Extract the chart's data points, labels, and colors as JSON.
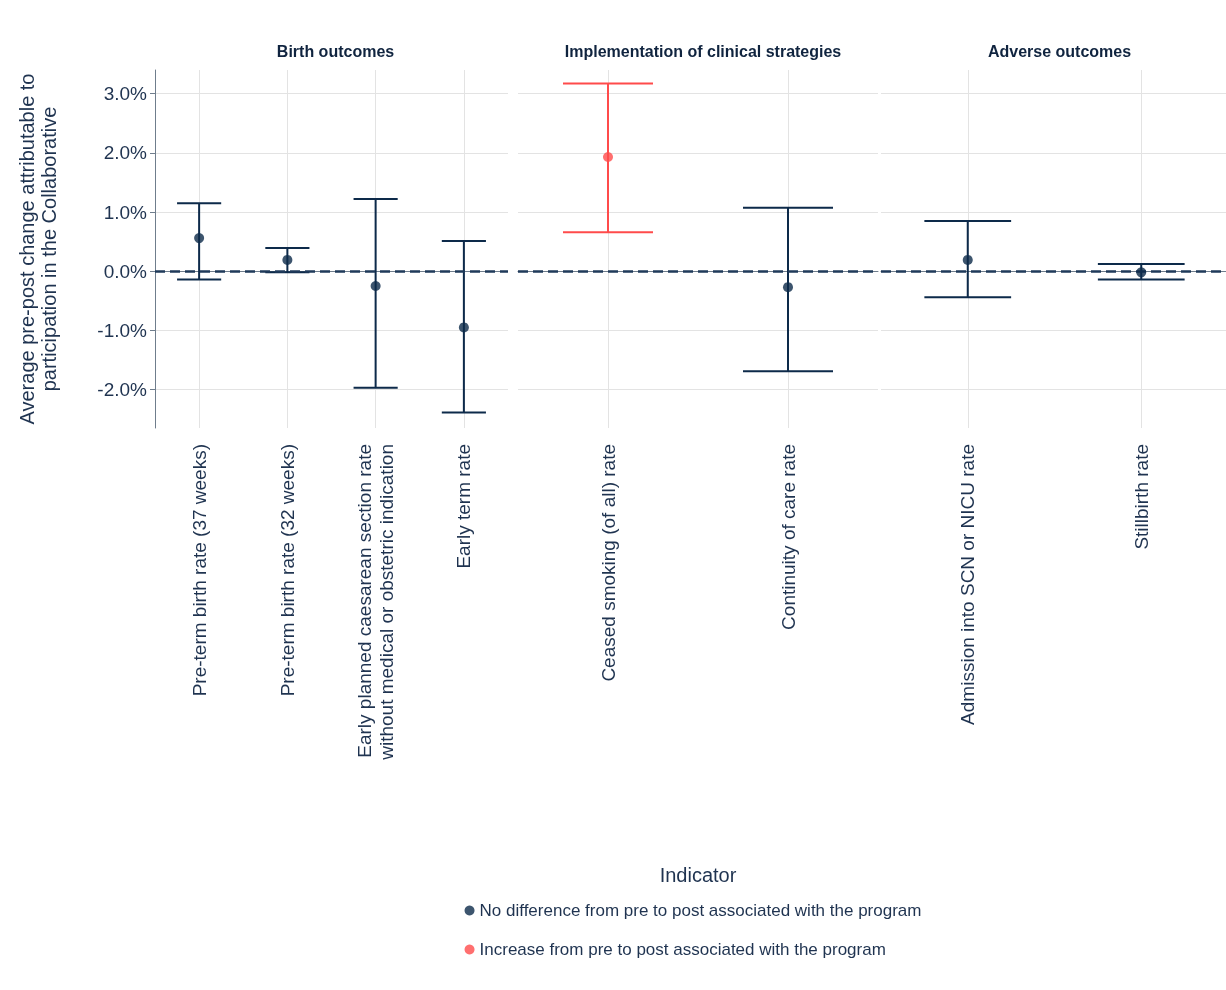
{
  "chart_data": [
    {
      "type": "scatter",
      "title": "Birth outcomes",
      "ylabel": "Average pre-post change attributable to\nparticipation in the Collaborative",
      "categories": [
        "Pre-term birth rate (37 weeks)",
        "Pre-term birth rate (32 weeks)",
        "Early planned caesarean section rate\nwithout medical or obstetric indication",
        "Early term rate"
      ],
      "series": [
        {
          "color": "#0d2a4a",
          "values": [
            0.56,
            0.19,
            -0.25,
            -0.95
          ],
          "errors": [
            [
              -0.14,
              1.15
            ],
            [
              -0.02,
              0.39
            ],
            [
              -1.97,
              1.22
            ],
            [
              -2.39,
              0.51
            ]
          ]
        }
      ],
      "ylim": [
        -2.65,
        3.4
      ],
      "yticks": [
        {
          "value": -2,
          "label": "-2.0%"
        },
        {
          "value": -1,
          "label": "-1.0%"
        },
        {
          "value": 0,
          "label": "0.0%"
        },
        {
          "value": 1,
          "label": "1.0%"
        },
        {
          "value": 2,
          "label": "2.0%"
        },
        {
          "value": 3,
          "label": "3.0%"
        }
      ],
      "ref_lines": [
        {
          "axis": "y",
          "value": 0,
          "color": "#1f3a5a",
          "line_style": "dashed"
        }
      ],
      "grid": true,
      "marker": "circle"
    },
    {
      "type": "scatter",
      "title": "Implementation of clinical strategies",
      "xlabel": "Indicator",
      "categories": [
        "Ceased smoking (of all) rate",
        "Continuity of care rate"
      ],
      "series": [
        {
          "name": "No difference from pre to post associated with the program",
          "color": "#0d2a4a",
          "values": [
            null,
            -0.27
          ],
          "errors": [
            null,
            [
              -1.69,
              1.07
            ]
          ]
        },
        {
          "name": "Increase from pre to post associated with the program",
          "color": "#ff4b4b",
          "values": [
            1.93,
            null
          ],
          "errors": [
            [
              0.66,
              3.17
            ],
            null
          ]
        }
      ],
      "ylim": [
        -2.65,
        3.4
      ],
      "yticks": [
        -2,
        -1,
        0,
        1,
        2,
        3
      ],
      "ref_lines": [
        {
          "axis": "y",
          "value": 0,
          "color": "#1f3a5a",
          "line_style": "dashed"
        }
      ],
      "grid": true,
      "marker": "circle",
      "legend": "bottom",
      "tick_labels": "x"
    },
    {
      "type": "scatter",
      "title": "Adverse outcomes",
      "categories": [
        "Admission into SCN or NICU rate",
        "Stillbirth rate"
      ],
      "series": [
        {
          "color": "#0d2a4a",
          "values": [
            0.19,
            -0.02
          ],
          "errors": [
            [
              -0.44,
              0.85
            ],
            [
              -0.14,
              0.12
            ]
          ]
        }
      ],
      "ylim": [
        -2.65,
        3.4
      ],
      "yticks": [
        -2,
        -1,
        0,
        1,
        2,
        3
      ],
      "ref_lines": [
        {
          "axis": "y",
          "value": 0,
          "color": "#1f3a5a",
          "line_style": "dashed"
        }
      ],
      "grid": true,
      "marker": "circle",
      "tick_labels": "x"
    }
  ]
}
